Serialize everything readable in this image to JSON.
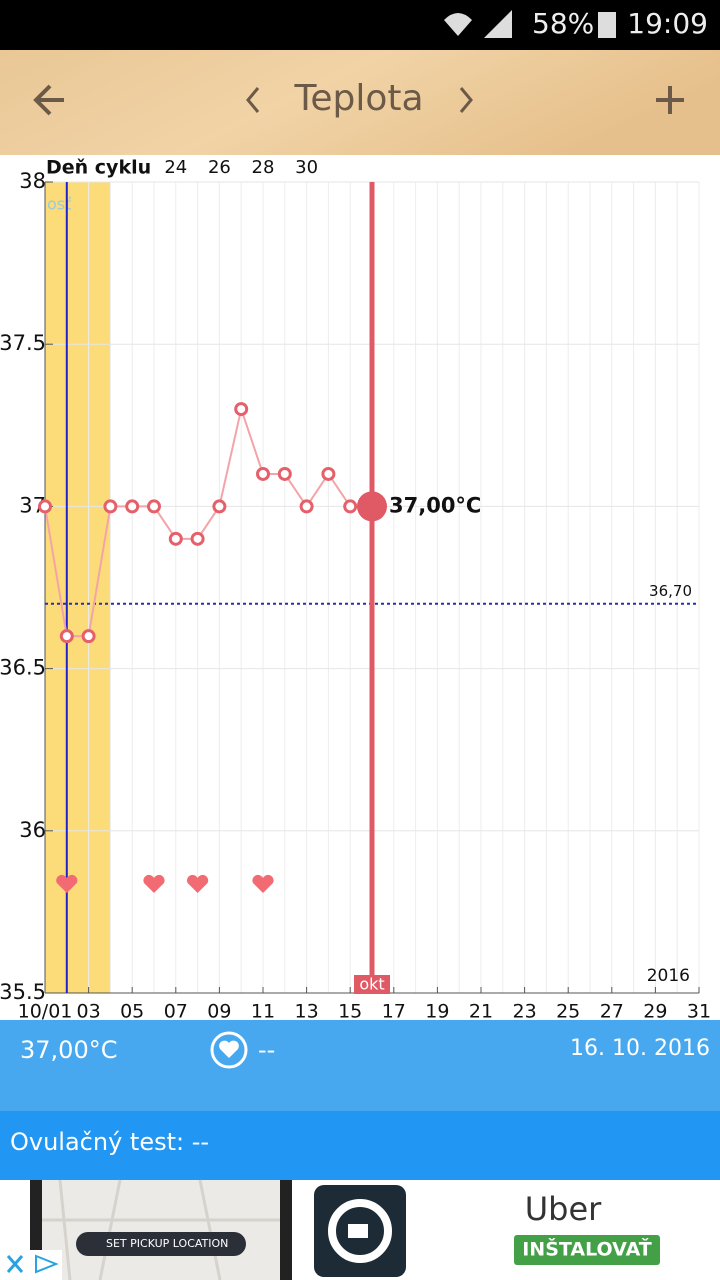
{
  "status_bar": {
    "battery": "58%",
    "time": "19:09"
  },
  "toolbar": {
    "title": "Teplota"
  },
  "chart_data": {
    "type": "line",
    "x_label": "Deň cyklu",
    "faded_label": "osť",
    "year_label": "2016",
    "xlim": [
      1,
      31
    ],
    "xticks": [
      {
        "value": 1,
        "label": "10/01"
      },
      {
        "value": 3,
        "label": "03"
      },
      {
        "value": 5,
        "label": "05"
      },
      {
        "value": 7,
        "label": "07"
      },
      {
        "value": 9,
        "label": "09"
      },
      11,
      13,
      15,
      17,
      19,
      21,
      23,
      25,
      27,
      29,
      31
    ],
    "ylim": [
      35.5,
      38
    ],
    "yticks": [
      35.5,
      36,
      36.5,
      37,
      37.5,
      38
    ],
    "grid": true,
    "series": [
      {
        "name": "Teplota",
        "color": "#e5606a",
        "x": [
          1,
          2,
          3,
          4,
          5,
          6,
          7,
          8,
          9,
          10,
          11,
          12,
          13,
          14,
          15,
          16
        ],
        "values": [
          37,
          36.6,
          36.6,
          37,
          37,
          37,
          36.9,
          36.9,
          37,
          37.3,
          37.1,
          37.1,
          37,
          37.1,
          37,
          37
        ]
      }
    ],
    "cycle_days": {
      "x": [
        7,
        9,
        11,
        13
      ],
      "values": [
        24,
        26,
        28,
        30
      ]
    },
    "period": [
      1,
      4
    ],
    "blue_line_x": 2,
    "cover_line": {
      "value": 36.7,
      "label": "36,70"
    },
    "selected": {
      "x": 16,
      "value": 37,
      "value_label": "37,00°C",
      "month_label": "okt"
    },
    "heart_days": [
      2,
      6,
      8,
      11
    ]
  },
  "info": {
    "temperature": "37,00°C",
    "heart": "--",
    "date": "16. 10. 2016"
  },
  "ovulation": {
    "label": "Ovulačný test: --"
  },
  "ad": {
    "map_label": "SET PICKUP LOCATION",
    "title": "Uber",
    "button": "INŠTALOVAŤ"
  }
}
